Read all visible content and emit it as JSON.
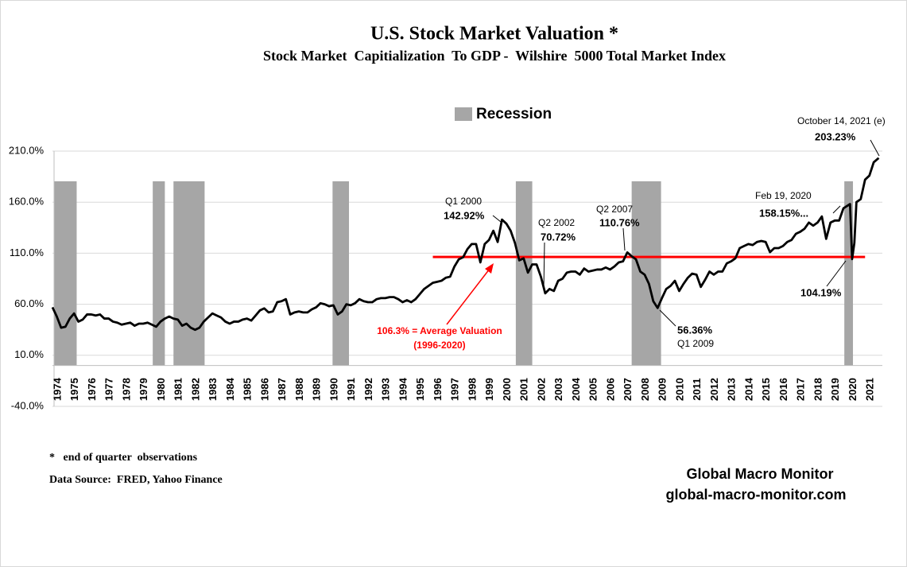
{
  "chart_data": {
    "type": "line",
    "title": "U.S. Stock Market Valuation *",
    "subtitle": "Stock Market  Capitialization  To GDP -  Wilshire  5000 Total Market Index",
    "legend": "Recession",
    "recession_color": "#a6a6a6",
    "recessions": [
      [
        1974.1,
        1975.4
      ],
      [
        1979.8,
        1980.5
      ],
      [
        1981.0,
        1982.8
      ],
      [
        1990.2,
        1991.15
      ],
      [
        2000.8,
        2001.75
      ],
      [
        2007.5,
        2009.2
      ],
      [
        2019.8,
        2020.3
      ]
    ],
    "xlim": [
      1974,
      2022
    ],
    "xticks": [
      1974,
      1975,
      1976,
      1977,
      1978,
      1979,
      1980,
      1981,
      1982,
      1983,
      1984,
      1985,
      1986,
      1987,
      1988,
      1989,
      1990,
      1991,
      1992,
      1993,
      1994,
      1995,
      1996,
      1997,
      1998,
      1999,
      2000,
      2001,
      2002,
      2003,
      2004,
      2005,
      2006,
      2007,
      2008,
      2009,
      2010,
      2011,
      2012,
      2013,
      2014,
      2015,
      2016,
      2017,
      2018,
      2019,
      2020,
      2021
    ],
    "ylim": [
      -40,
      210
    ],
    "yticks": [
      {
        "value": -40,
        "label": "-40.0%"
      },
      {
        "value": 10,
        "label": "10.0%"
      },
      {
        "value": 60,
        "label": "60.0%"
      },
      {
        "value": 110,
        "label": "110.0%"
      },
      {
        "value": 160,
        "label": "160.0%"
      },
      {
        "value": 210,
        "label": "210.0%"
      }
    ],
    "grid": true,
    "average": {
      "value": 106.3,
      "x": [
        1996,
        2021
      ],
      "color": "#ff0000",
      "label": "106.3% = Average Valuation",
      "period": "(1996-2020)"
    },
    "annotations": [
      "Q1 2000",
      "142.92%",
      "Q2 2002",
      "70.72%",
      "Q2 2007",
      "110.76%",
      "Feb 19, 2020",
      "158.15%...",
      "104.19%",
      "56.36%",
      "Q1 2009",
      "October 14, 2021 (e)",
      "203.23%"
    ],
    "footnote": "*   end of quarter  observations",
    "source": "Data Source:  FRED, Yahoo Finance",
    "brand": "Global Macro Monitor",
    "website": "global-macro-monitor.com",
    "series": [
      {
        "name": "Stock Market Capitalization To GDP",
        "color": "#000000",
        "x": [
          1974,
          1974.25,
          1974.5,
          1974.75,
          1975,
          1975.25,
          1975.5,
          1975.75,
          1976,
          1976.25,
          1976.5,
          1976.75,
          1977,
          1977.25,
          1977.5,
          1977.75,
          1978,
          1978.25,
          1978.5,
          1978.75,
          1979,
          1979.25,
          1979.5,
          1979.75,
          1980,
          1980.25,
          1980.5,
          1980.75,
          1981,
          1981.25,
          1981.5,
          1981.75,
          1982,
          1982.25,
          1982.5,
          1982.75,
          1983,
          1983.25,
          1983.5,
          1983.75,
          1984,
          1984.25,
          1984.5,
          1984.75,
          1985,
          1985.25,
          1985.5,
          1985.75,
          1986,
          1986.25,
          1986.5,
          1986.75,
          1987,
          1987.25,
          1987.5,
          1987.75,
          1988,
          1988.25,
          1988.5,
          1988.75,
          1989,
          1989.25,
          1989.5,
          1989.75,
          1990,
          1990.25,
          1990.5,
          1990.75,
          1991,
          1991.25,
          1991.5,
          1991.75,
          1992,
          1992.25,
          1992.5,
          1992.75,
          1993,
          1993.25,
          1993.5,
          1993.75,
          1994,
          1994.25,
          1994.5,
          1994.75,
          1995,
          1995.25,
          1995.5,
          1995.75,
          1996,
          1996.25,
          1996.5,
          1996.75,
          1997,
          1997.25,
          1997.5,
          1997.75,
          1998,
          1998.25,
          1998.5,
          1998.75,
          1999,
          1999.25,
          1999.5,
          1999.75,
          2000,
          2000.25,
          2000.5,
          2000.75,
          2001,
          2001.25,
          2001.5,
          2001.75,
          2002,
          2002.25,
          2002.5,
          2002.75,
          2003,
          2003.25,
          2003.5,
          2003.75,
          2004,
          2004.25,
          2004.5,
          2004.75,
          2005,
          2005.25,
          2005.5,
          2005.75,
          2006,
          2006.25,
          2006.5,
          2006.75,
          2007,
          2007.25,
          2007.5,
          2007.75,
          2008,
          2008.25,
          2008.5,
          2008.75,
          2009,
          2009.25,
          2009.5,
          2009.75,
          2010,
          2010.25,
          2010.5,
          2010.75,
          2011,
          2011.25,
          2011.5,
          2011.75,
          2012,
          2012.25,
          2012.5,
          2012.75,
          2013,
          2013.25,
          2013.5,
          2013.75,
          2014,
          2014.25,
          2014.5,
          2014.75,
          2015,
          2015.25,
          2015.5,
          2015.75,
          2016,
          2016.25,
          2016.5,
          2016.75,
          2017,
          2017.25,
          2017.5,
          2017.75,
          2018,
          2018.25,
          2018.5,
          2018.75,
          2019,
          2019.25,
          2019.5,
          2019.75,
          2020.13,
          2020.25,
          2020.38,
          2020.5,
          2020.75,
          2021,
          2021.25,
          2021.5,
          2021.79
        ],
        "values": [
          57,
          48,
          37,
          38,
          46,
          51,
          43,
          45,
          50,
          50,
          49,
          50,
          46,
          46,
          43,
          42,
          40,
          41,
          42,
          39,
          41,
          41,
          42,
          40,
          38,
          43,
          46,
          48,
          46,
          45,
          39,
          41,
          37,
          35,
          37,
          43,
          47,
          51,
          49,
          47,
          43,
          41,
          43,
          43,
          45,
          46,
          44,
          49,
          54,
          56,
          52,
          53,
          62,
          63,
          65,
          50,
          52,
          53,
          52,
          52,
          55,
          57,
          61,
          60,
          58,
          59,
          50,
          53,
          60,
          59,
          61,
          65,
          63,
          62,
          62,
          65,
          66,
          66,
          67,
          67,
          65,
          62,
          64,
          62,
          65,
          70,
          75,
          78,
          81,
          82,
          83,
          86,
          87,
          97,
          104,
          106,
          114,
          119,
          119,
          101,
          119,
          123,
          132,
          121,
          142.92,
          139,
          132,
          120,
          103,
          105,
          91,
          99,
          99,
          87,
          70.72,
          75,
          73,
          83,
          85,
          91,
          92,
          92,
          89,
          95,
          92,
          93,
          94,
          94,
          96,
          94,
          97,
          101,
          102,
          110.76,
          107,
          104,
          92,
          89,
          80,
          63,
          56.36,
          66,
          75,
          78,
          83,
          73,
          80,
          86,
          90,
          89,
          77,
          84,
          92,
          89,
          92,
          92,
          100,
          102,
          105,
          115,
          117,
          119,
          118,
          121,
          122,
          121,
          111,
          115,
          115,
          117,
          121,
          123,
          129,
          131,
          134,
          140,
          137,
          140,
          146,
          124,
          140,
          142,
          142,
          154,
          158.15,
          104.19,
          120,
          160,
          163,
          182,
          186,
          199,
          203.23
        ]
      }
    ]
  }
}
